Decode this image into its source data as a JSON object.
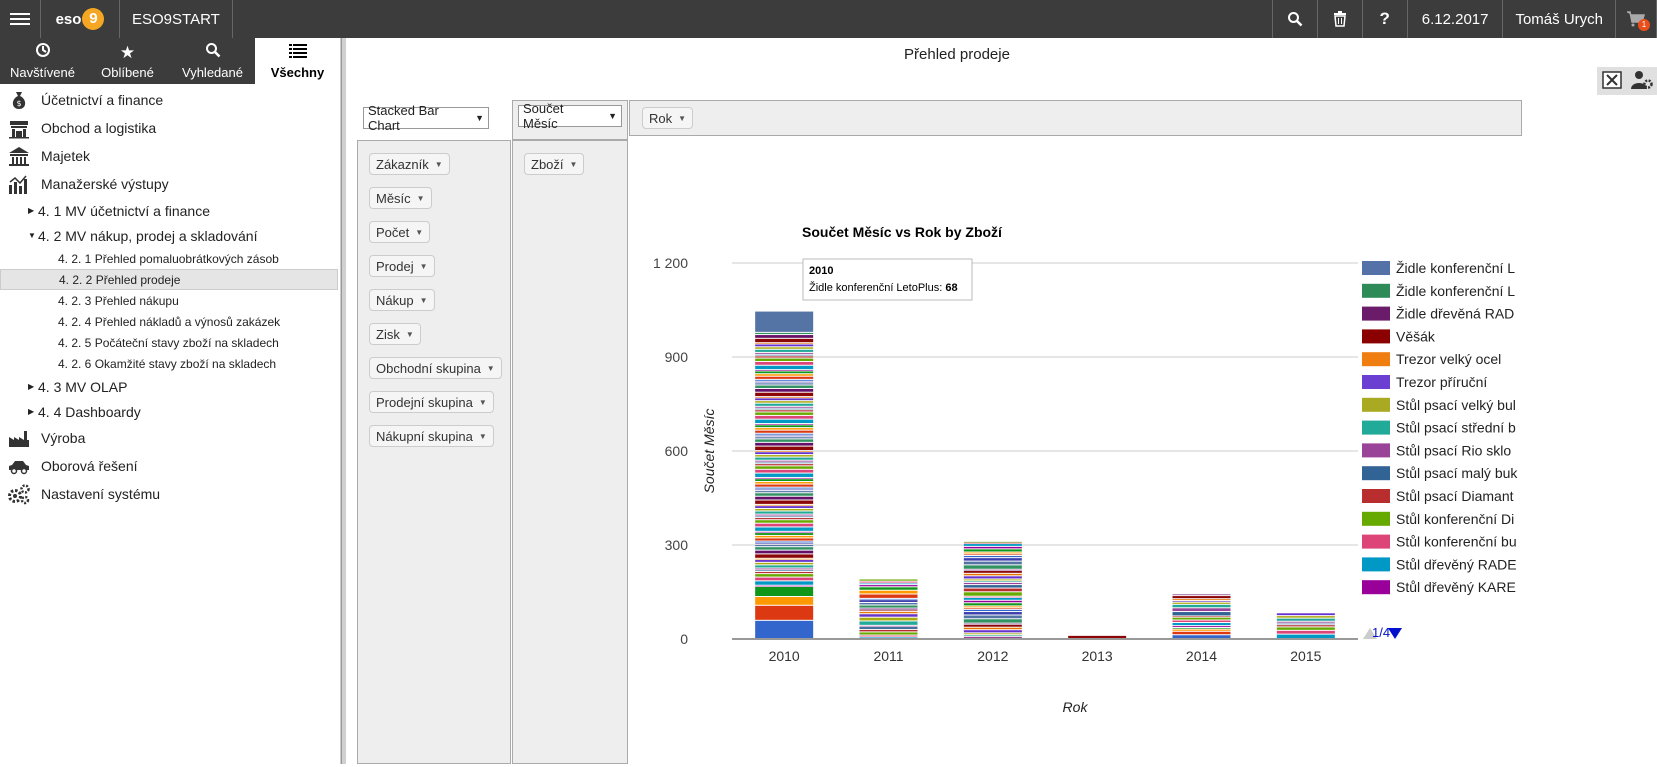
{
  "topbar": {
    "logo": "eso",
    "logo_num": "9",
    "app_name": "ESO9START",
    "date": "6.12.2017",
    "user": "Tomáš Urych",
    "cart_count": "1"
  },
  "tabs": [
    {
      "label": "Navštívené",
      "icon": "history-icon"
    },
    {
      "label": "Oblíbené",
      "icon": "star-icon"
    },
    {
      "label": "Vyhledané",
      "icon": "search-icon"
    },
    {
      "label": "Všechny",
      "icon": "list-icon"
    }
  ],
  "tree": {
    "i1": "Účetnictví a finance",
    "i2": "Obchod a logistika",
    "i3": "Majetek",
    "i4": "Manažerské výstupy",
    "s41": "4. 1 MV účetnictví a finance",
    "s42": "4. 2 MV nákup, prodej a skladování",
    "r1": "4. 2. 1 Přehled pomaluobrátkových zásob",
    "r2": "4. 2. 2 Přehled prodeje",
    "r3": "4. 2. 3 Přehled nákupu",
    "r4": "4. 2. 4 Přehled nákladů a výnosů zakázek",
    "r5": "4. 2. 5 Počáteční stavy zboží na skladech",
    "r6": "4. 2. 6 Okamžité stavy zboží na skladech",
    "s43": "4. 3 MV OLAP",
    "s44": "4. 4 Dashboardy",
    "i5": "Výroba",
    "i6": "Oborová řešení",
    "i7": "Nastavení systému"
  },
  "main": {
    "title": "Přehled prodeje",
    "renderer": "Stacked Bar Chart",
    "aggregator": "Součet Měsíc",
    "col_field": "Rok",
    "row_field": "Zboží",
    "fields": [
      "Zákazník",
      "Měsíc",
      "Počet",
      "Prodej",
      "Nákup",
      "Zisk",
      "Obchodní skupina",
      "Prodejní skupina",
      "Nákupní skupina"
    ]
  },
  "tooltip": {
    "year": "2010",
    "label": "Židle konferenční LetoPlus:",
    "value": "68"
  },
  "legend_page": "1/4",
  "chart_data": {
    "type": "bar",
    "stacked": true,
    "title": "Součet Měsíc vs Rok by Zboží",
    "xlabel": "Rok",
    "ylabel": "Součet Měsíc",
    "categories": [
      "2010",
      "2011",
      "2012",
      "2013",
      "2014",
      "2015"
    ],
    "yticks": [
      "0",
      "300",
      "600",
      "900",
      "1 200"
    ],
    "ylim": [
      0,
      1200
    ],
    "totals": [
      1045,
      190,
      310,
      10,
      142,
      82
    ],
    "legend": [
      {
        "name": "Židle konferenční L",
        "color": "#5471a8"
      },
      {
        "name": "Židle konferenční L",
        "color": "#2e8b57"
      },
      {
        "name": "Židle dřevěná RAD",
        "color": "#6a1b6a"
      },
      {
        "name": "Věšák",
        "color": "#8b0000"
      },
      {
        "name": "Trezor velký ocel",
        "color": "#ef7d10"
      },
      {
        "name": "Trezor příruční",
        "color": "#6a3fd1"
      },
      {
        "name": "Stůl psací velký bul",
        "color": "#aaaa22"
      },
      {
        "name": "Stůl psací střední b",
        "color": "#22aa99"
      },
      {
        "name": "Stůl psací Rio sklo",
        "color": "#994499"
      },
      {
        "name": "Stůl psací malý buk",
        "color": "#316395"
      },
      {
        "name": "Stůl psací Diamant",
        "color": "#b82e2e"
      },
      {
        "name": "Stůl konferenční Di",
        "color": "#66aa00"
      },
      {
        "name": "Stůl konferenční bu",
        "color": "#dd4477"
      },
      {
        "name": "Stůl dřevěný RADE",
        "color": "#0099c6"
      },
      {
        "name": "Stůl dřevěný KARE",
        "color": "#990099"
      }
    ],
    "palette": [
      "#3366cc",
      "#dc3912",
      "#ff9900",
      "#109618",
      "#990099",
      "#0099c6",
      "#dd4477",
      "#66aa00",
      "#b82e2e",
      "#316395",
      "#994499",
      "#22aa99",
      "#aaaa11",
      "#6633cc",
      "#e67300",
      "#8b0707",
      "#651067",
      "#329262",
      "#5574a6",
      "#3b3eac"
    ],
    "highlight": {
      "category": "2010",
      "value": 68,
      "color": "#5574a6"
    }
  }
}
